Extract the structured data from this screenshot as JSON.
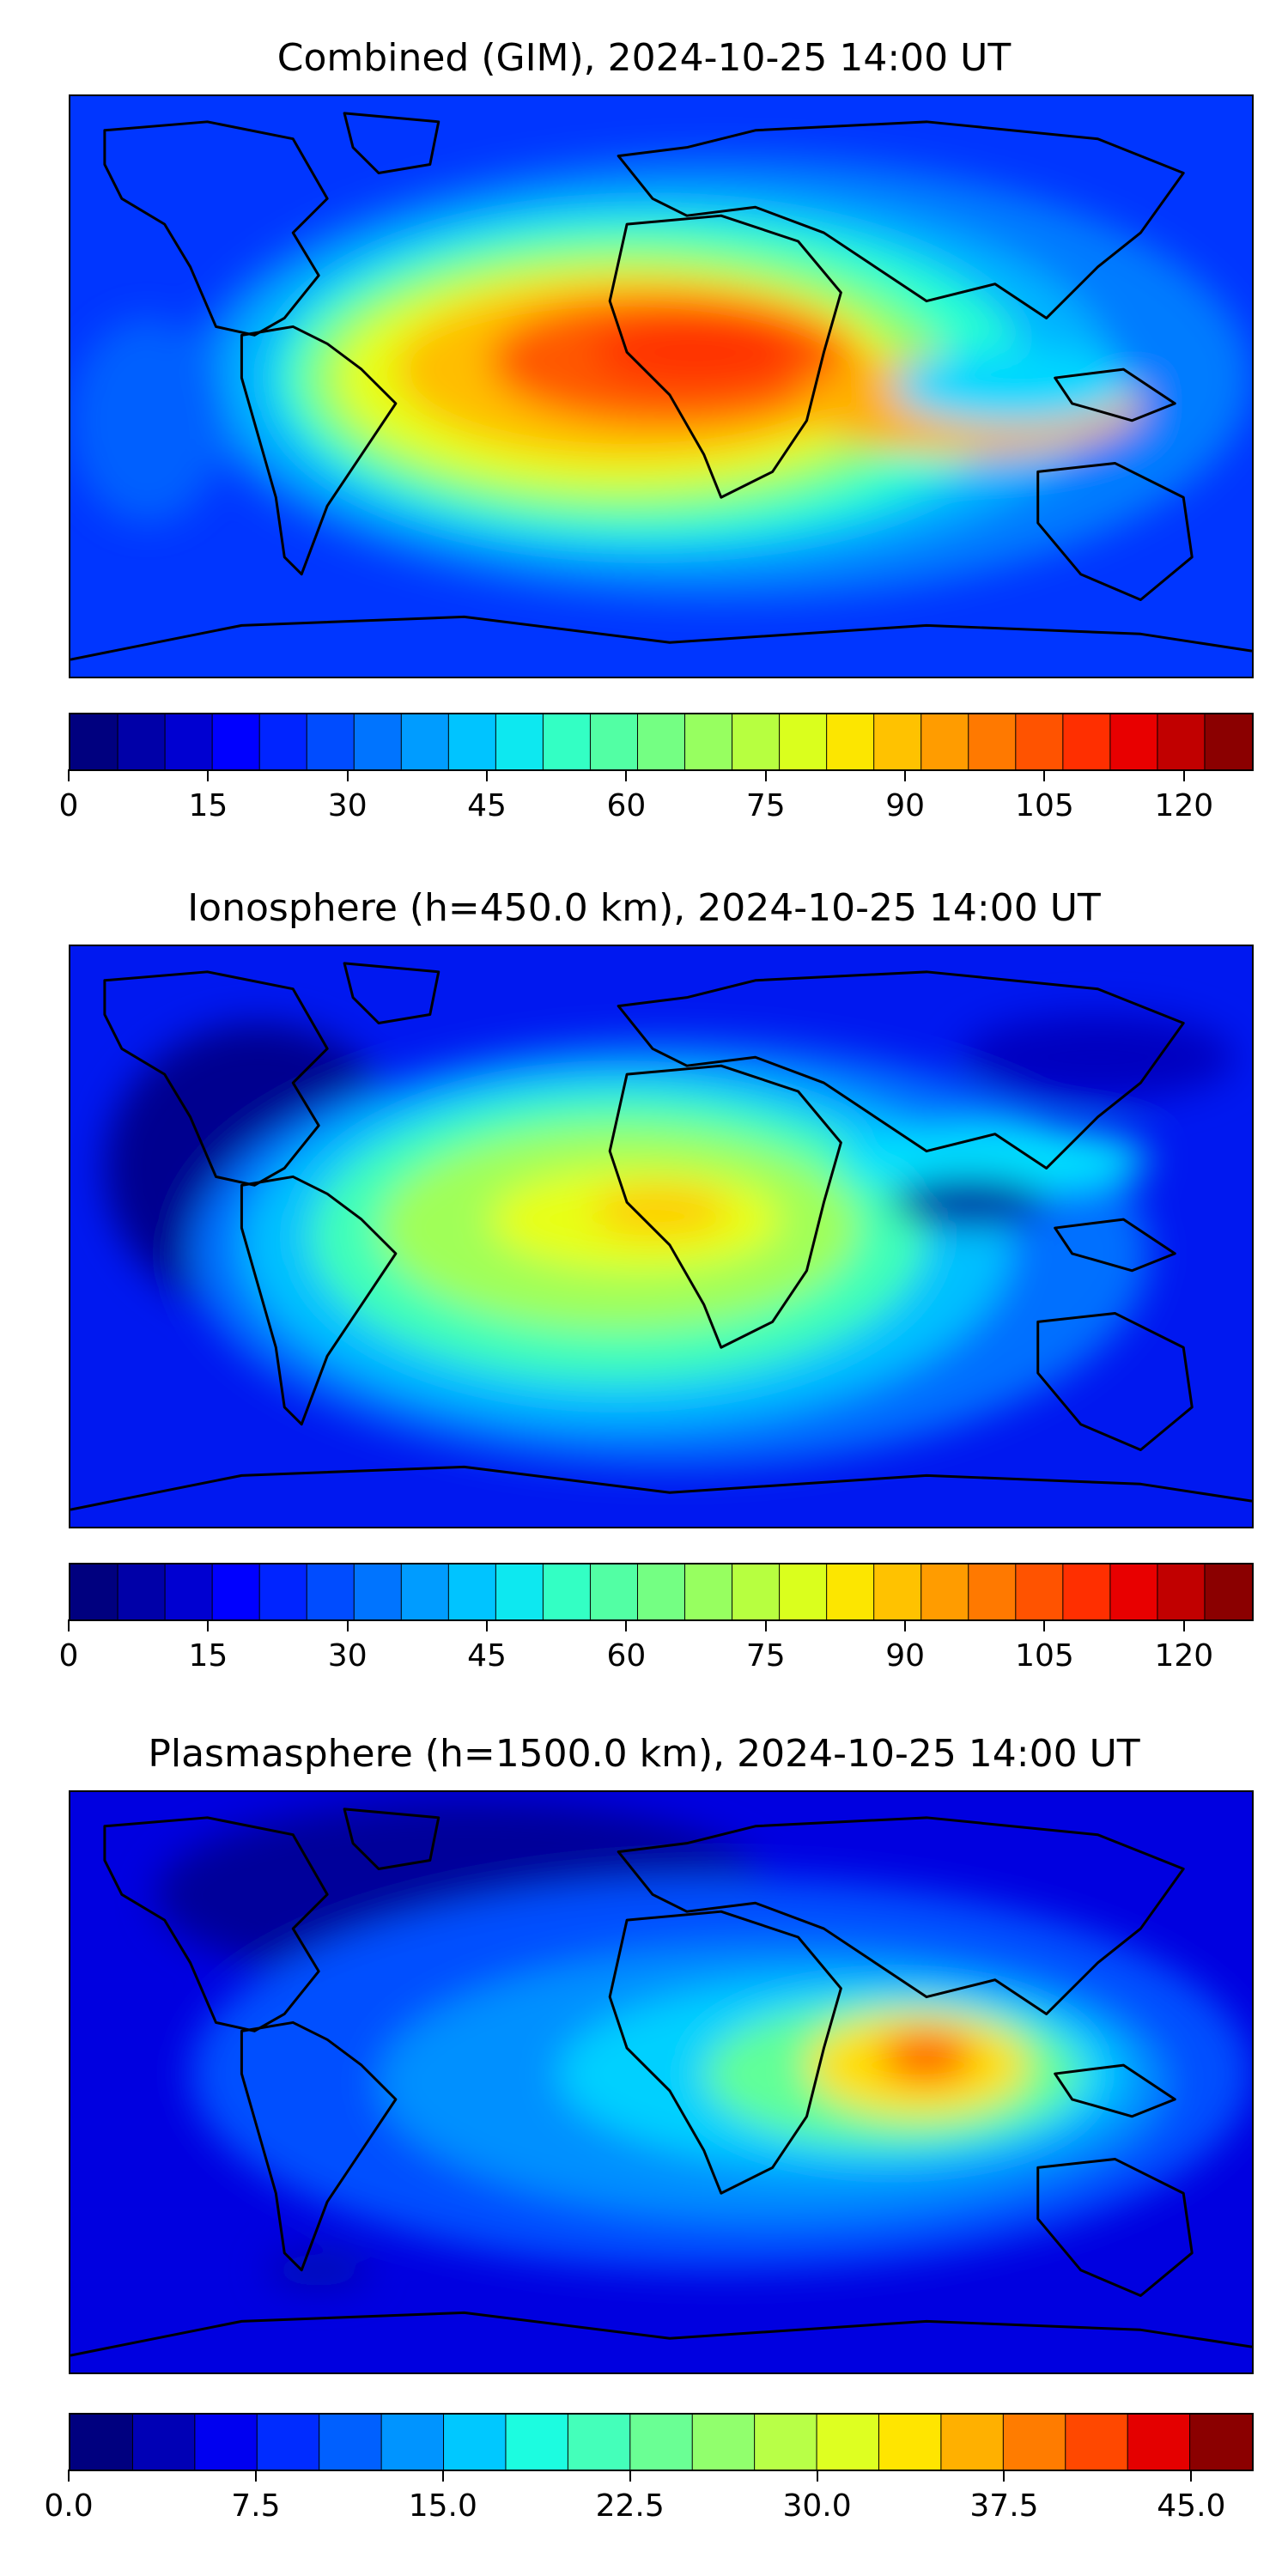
{
  "panels": [
    {
      "title": "Combined (GIM), 2024-10-25 14:00 UT",
      "colorbar": {
        "colors": [
          "#00007f",
          "#0000a8",
          "#0000d1",
          "#0000ff",
          "#0024ff",
          "#004cff",
          "#0074ff",
          "#009cff",
          "#00c4ff",
          "#0de8f0",
          "#33ffc4",
          "#52ffa4",
          "#74ff83",
          "#97ff60",
          "#b7ff40",
          "#daff1d",
          "#fce600",
          "#ffc200",
          "#ff9c00",
          "#ff7900",
          "#ff5300",
          "#ff2f00",
          "#e80000",
          "#c10000",
          "#8b0000"
        ],
        "min": 0,
        "max": 127.5,
        "ticks": [
          "0",
          "15",
          "30",
          "45",
          "60",
          "75",
          "90",
          "105",
          "120"
        ],
        "tick_values": [
          0,
          15,
          30,
          45,
          60,
          75,
          90,
          105,
          120
        ]
      }
    },
    {
      "title": "Ionosphere  (h=450.0 km), 2024-10-25 14:00 UT",
      "colorbar": {
        "colors": [
          "#00007f",
          "#0000a8",
          "#0000d1",
          "#0000ff",
          "#0024ff",
          "#004cff",
          "#0074ff",
          "#009cff",
          "#00c4ff",
          "#0de8f0",
          "#33ffc4",
          "#52ffa4",
          "#74ff83",
          "#97ff60",
          "#b7ff40",
          "#daff1d",
          "#fce600",
          "#ffc200",
          "#ff9c00",
          "#ff7900",
          "#ff5300",
          "#ff2f00",
          "#e80000",
          "#c10000",
          "#8b0000"
        ],
        "min": 0,
        "max": 127.5,
        "ticks": [
          "0",
          "15",
          "30",
          "45",
          "60",
          "75",
          "90",
          "105",
          "120"
        ],
        "tick_values": [
          0,
          15,
          30,
          45,
          60,
          75,
          90,
          105,
          120
        ]
      }
    },
    {
      "title": "Plasmasphere (h=1500.0 km), 2024-10-25 14:00 UT",
      "colorbar": {
        "colors": [
          "#00007f",
          "#0000b5",
          "#0000f0",
          "#002cff",
          "#0060ff",
          "#0094ff",
          "#00c8ff",
          "#1cfce0",
          "#44ffba",
          "#6aff94",
          "#91ff6d",
          "#b8ff47",
          "#deff21",
          "#ffe500",
          "#ffb000",
          "#ff7c00",
          "#ff4800",
          "#e40000",
          "#8b0000"
        ],
        "min": 0,
        "max": 47.5,
        "ticks": [
          "0.0",
          "7.5",
          "15.0",
          "22.5",
          "30.0",
          "37.5",
          "45.0"
        ],
        "tick_values": [
          0,
          7.5,
          15,
          22.5,
          30,
          37.5,
          45
        ]
      }
    }
  ]
}
